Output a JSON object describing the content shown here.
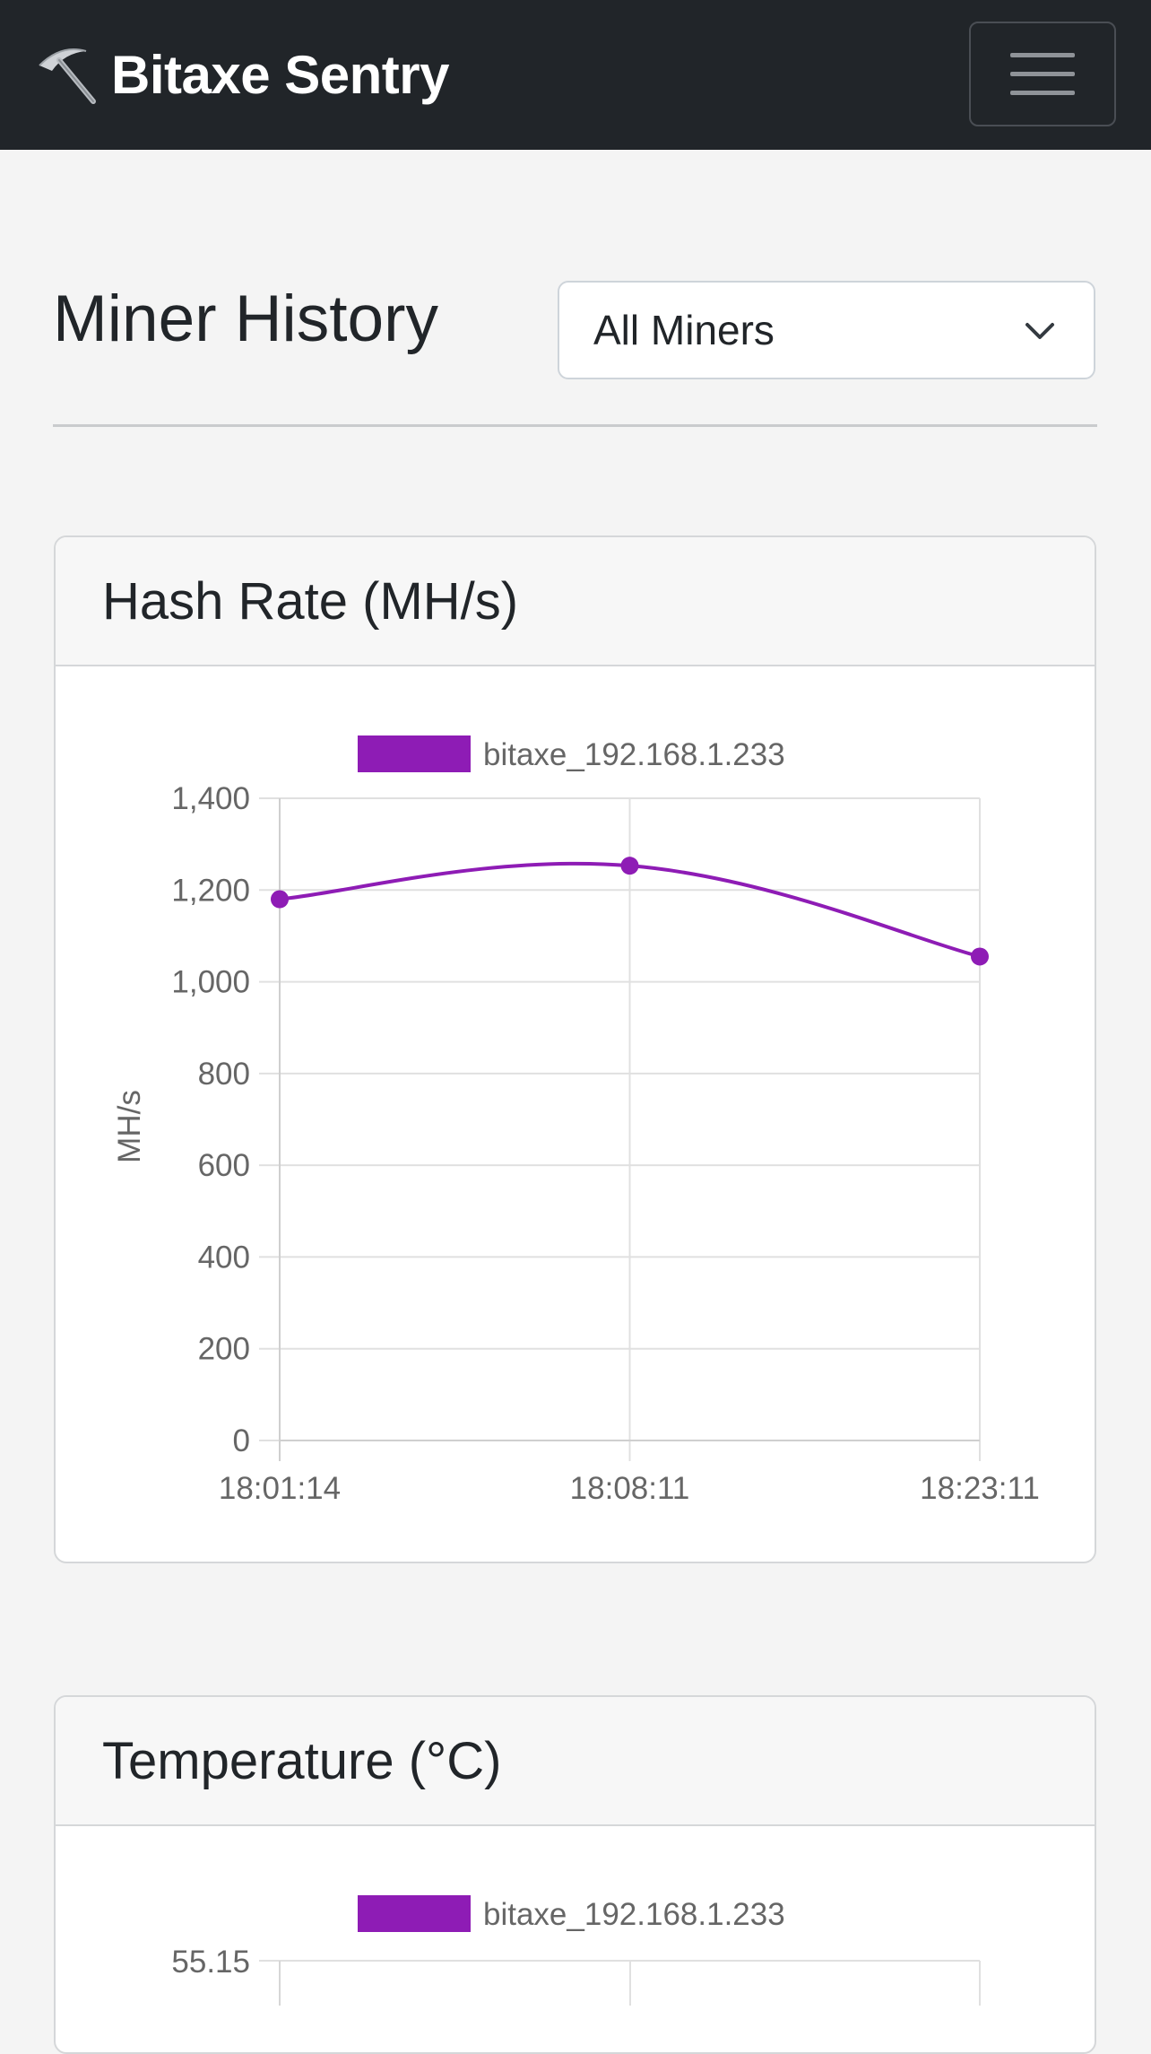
{
  "navbar": {
    "brand_icon": "pickaxe-icon",
    "brand_text": "Bitaxe Sentry",
    "menu_icon": "hamburger-menu-icon"
  },
  "page": {
    "title": "Miner History",
    "miner_select": {
      "selected": "All Miners",
      "icon": "chevron-down-icon"
    }
  },
  "colors": {
    "series": "#8e1cb5",
    "navbar": "#212529",
    "grid": "#e0e0e0"
  },
  "cards": [
    {
      "title": "Hash Rate (MH/s)"
    },
    {
      "title": "Temperature (°C)"
    }
  ],
  "chart_data": [
    {
      "type": "line",
      "title": "Hash Rate (MH/s)",
      "xlabel": "",
      "ylabel": "MH/s",
      "categories": [
        "18:01:14",
        "18:08:11",
        "18:23:11"
      ],
      "series": [
        {
          "name": "bitaxe_192.168.1.233",
          "values": [
            1180,
            1253,
            1055
          ]
        }
      ],
      "ylim": [
        0,
        1400
      ],
      "yticks": [
        "0",
        "200",
        "400",
        "600",
        "800",
        "1,000",
        "1,200",
        "1,400"
      ],
      "grid": true,
      "legend": "top"
    },
    {
      "type": "line",
      "title": "Temperature (°C)",
      "series": [
        {
          "name": "bitaxe_192.168.1.233"
        }
      ],
      "yticks_visible": [
        "55.15"
      ],
      "grid": true,
      "legend": "top"
    }
  ]
}
